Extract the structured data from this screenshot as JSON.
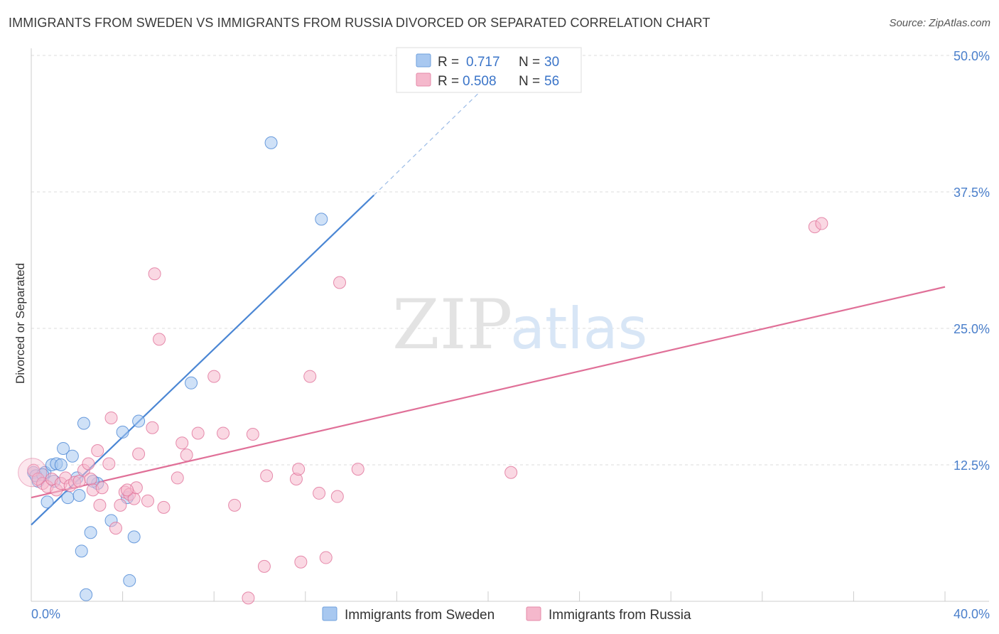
{
  "title": "IMMIGRANTS FROM SWEDEN VS IMMIGRANTS FROM RUSSIA DIVORCED OR SEPARATED CORRELATION CHART",
  "source": "Source: ZipAtlas.com",
  "watermark": {
    "zip": "ZIP",
    "atlas": "atlas"
  },
  "legend": {
    "rows": [
      {
        "r_label": "R =",
        "r_value": "0.717",
        "n_label": "N =",
        "n_value": "30",
        "color": "#a8c8f0"
      },
      {
        "r_label": "R =",
        "r_value": "0.508",
        "n_label": "N =",
        "n_value": "56",
        "color": "#f5b8cc"
      }
    ]
  },
  "bottom_legend": [
    {
      "label": "Immigrants from Sweden",
      "color": "#a8c8f0"
    },
    {
      "label": "Immigrants from Russia",
      "color": "#f5b8cc"
    }
  ],
  "chart_data": {
    "type": "scatter",
    "title": "IMMIGRANTS FROM SWEDEN VS IMMIGRANTS FROM RUSSIA DIVORCED OR SEPARATED CORRELATION CHART",
    "xlabel": "",
    "ylabel": "Divorced or Separated",
    "xlim": [
      0,
      40
    ],
    "ylim": [
      0,
      50
    ],
    "x_tick_labels": [
      "0.0%",
      "40.0%"
    ],
    "y_ticks": [
      12.5,
      25.0,
      37.5,
      50.0
    ],
    "y_tick_labels": [
      "12.5%",
      "25.0%",
      "37.5%",
      "50.0%"
    ],
    "grid": true,
    "series": [
      {
        "name": "Immigrants from Sweden",
        "color": "#4a86d4",
        "fill": "#a8c8f0",
        "points": [
          [
            0.1,
            11.8
          ],
          [
            0.3,
            11.0
          ],
          [
            0.6,
            11.8
          ],
          [
            0.7,
            9.1
          ],
          [
            0.9,
            12.5
          ],
          [
            1.1,
            12.6
          ],
          [
            1.3,
            12.5
          ],
          [
            1.4,
            14.0
          ],
          [
            1.6,
            9.5
          ],
          [
            1.8,
            13.3
          ],
          [
            2.0,
            11.3
          ],
          [
            2.1,
            9.7
          ],
          [
            2.2,
            4.6
          ],
          [
            2.3,
            16.3
          ],
          [
            2.4,
            0.6
          ],
          [
            2.6,
            6.3
          ],
          [
            2.9,
            10.8
          ],
          [
            3.5,
            7.4
          ],
          [
            4.0,
            15.5
          ],
          [
            4.2,
            9.5
          ],
          [
            4.3,
            1.9
          ],
          [
            4.5,
            5.9
          ],
          [
            4.7,
            16.5
          ],
          [
            7.0,
            20.0
          ],
          [
            10.5,
            42.0
          ],
          [
            12.7,
            35.0
          ],
          [
            0.2,
            11.5
          ],
          [
            0.5,
            11.6
          ],
          [
            1.0,
            11.0
          ],
          [
            2.7,
            11.0
          ]
        ],
        "trend": {
          "x": [
            0,
            15.0
          ],
          "y": [
            7.0,
            37.2
          ],
          "dashed_to": [
            20.0,
            47.4
          ]
        }
      },
      {
        "name": "Immigrants from Russia",
        "color": "#e07098",
        "fill": "#f5b8cc",
        "points": [
          [
            0.1,
            12.0
          ],
          [
            0.3,
            11.2
          ],
          [
            0.5,
            10.8
          ],
          [
            0.7,
            10.5
          ],
          [
            0.9,
            11.2
          ],
          [
            1.1,
            10.2
          ],
          [
            1.3,
            10.8
          ],
          [
            1.5,
            11.3
          ],
          [
            1.7,
            10.6
          ],
          [
            1.9,
            10.9
          ],
          [
            2.1,
            11.0
          ],
          [
            2.3,
            12.0
          ],
          [
            2.5,
            12.6
          ],
          [
            2.6,
            11.2
          ],
          [
            2.7,
            10.2
          ],
          [
            2.9,
            13.8
          ],
          [
            3.1,
            10.4
          ],
          [
            3.0,
            8.8
          ],
          [
            3.4,
            12.6
          ],
          [
            3.5,
            16.8
          ],
          [
            3.7,
            6.7
          ],
          [
            3.9,
            8.8
          ],
          [
            4.1,
            10.0
          ],
          [
            4.3,
            9.8
          ],
          [
            4.5,
            9.4
          ],
          [
            4.6,
            10.4
          ],
          [
            4.7,
            13.5
          ],
          [
            5.1,
            9.2
          ],
          [
            5.3,
            15.9
          ],
          [
            5.4,
            30.0
          ],
          [
            5.6,
            24.0
          ],
          [
            5.8,
            8.6
          ],
          [
            6.4,
            11.3
          ],
          [
            6.6,
            14.5
          ],
          [
            6.8,
            13.4
          ],
          [
            7.3,
            15.4
          ],
          [
            8.0,
            20.6
          ],
          [
            8.4,
            15.4
          ],
          [
            8.9,
            8.8
          ],
          [
            9.5,
            0.3
          ],
          [
            9.7,
            15.3
          ],
          [
            10.2,
            3.2
          ],
          [
            10.3,
            11.5
          ],
          [
            11.6,
            11.2
          ],
          [
            11.7,
            12.1
          ],
          [
            11.8,
            3.6
          ],
          [
            12.2,
            20.6
          ],
          [
            12.6,
            9.9
          ],
          [
            12.9,
            4.0
          ],
          [
            13.4,
            9.6
          ],
          [
            13.5,
            29.2
          ],
          [
            14.3,
            12.1
          ],
          [
            21.0,
            11.8
          ],
          [
            34.3,
            34.3
          ],
          [
            34.6,
            34.6
          ],
          [
            4.2,
            10.2
          ]
        ],
        "trend": {
          "x": [
            0,
            40.0
          ],
          "y": [
            9.5,
            28.8
          ]
        }
      }
    ]
  }
}
